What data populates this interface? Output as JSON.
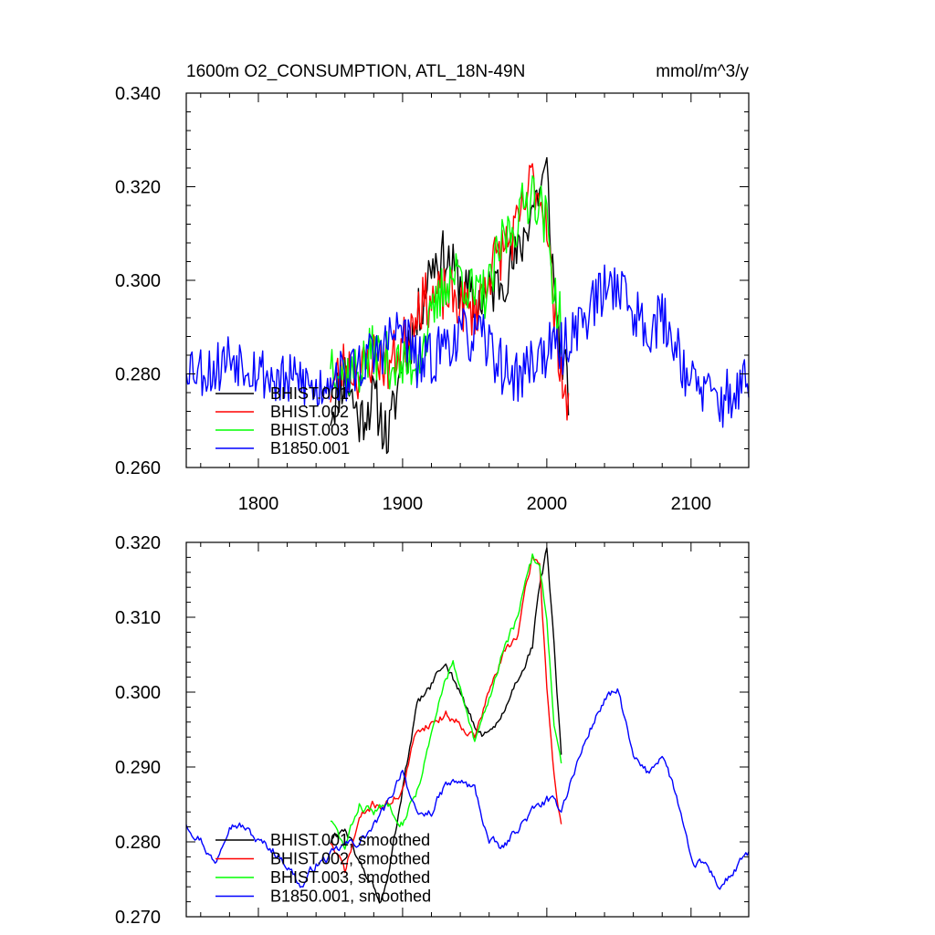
{
  "chart_data": [
    {
      "type": "line",
      "title": "1600m O2_CONSUMPTION, ATL_18N-49N",
      "units": "mmol/m^3/y",
      "xlim": [
        1750,
        2140
      ],
      "ylim": [
        0.26,
        0.34
      ],
      "xticks": [
        1800,
        1900,
        2000,
        2100
      ],
      "yticks": [
        0.26,
        0.28,
        0.3,
        0.32,
        0.34
      ],
      "ytick_labels": [
        "0.260",
        "0.280",
        "0.300",
        "0.320",
        "0.340"
      ],
      "legend_position": "bottom-left",
      "series": [
        {
          "name": "BHIST.001",
          "color": "#000000",
          "x": [
            1850,
            1860,
            1870,
            1880,
            1890,
            1900,
            1910,
            1920,
            1930,
            1940,
            1950,
            1960,
            1970,
            1980,
            1990,
            2000,
            2005,
            2010,
            2015
          ],
          "values": [
            0.272,
            0.28,
            0.27,
            0.275,
            0.266,
            0.283,
            0.291,
            0.304,
            0.305,
            0.299,
            0.295,
            0.297,
            0.301,
            0.305,
            0.316,
            0.323,
            0.298,
            0.285,
            0.276
          ],
          "noise": 0.006,
          "seed": 11
        },
        {
          "name": "BHIST.002",
          "color": "#ff0000",
          "x": [
            1850,
            1860,
            1870,
            1880,
            1890,
            1900,
            1910,
            1920,
            1930,
            1940,
            1950,
            1960,
            1970,
            1980,
            1990,
            2000,
            2005,
            2010,
            2015
          ],
          "values": [
            0.277,
            0.282,
            0.28,
            0.284,
            0.282,
            0.286,
            0.295,
            0.296,
            0.297,
            0.295,
            0.293,
            0.302,
            0.307,
            0.311,
            0.322,
            0.314,
            0.292,
            0.282,
            0.27
          ],
          "noise": 0.006,
          "seed": 23
        },
        {
          "name": "BHIST.003",
          "color": "#00ff00",
          "x": [
            1850,
            1860,
            1870,
            1880,
            1890,
            1900,
            1910,
            1920,
            1930,
            1940,
            1950,
            1960,
            1970,
            1980,
            1990,
            2000,
            2005,
            2010
          ],
          "values": [
            0.284,
            0.28,
            0.281,
            0.285,
            0.283,
            0.281,
            0.283,
            0.291,
            0.3,
            0.302,
            0.296,
            0.298,
            0.309,
            0.313,
            0.32,
            0.312,
            0.298,
            0.29
          ],
          "noise": 0.006,
          "seed": 37
        },
        {
          "name": "B1850.001",
          "color": "#0000ff",
          "x": [
            1750,
            1760,
            1770,
            1780,
            1790,
            1800,
            1810,
            1820,
            1830,
            1840,
            1850,
            1860,
            1870,
            1880,
            1890,
            1900,
            1910,
            1920,
            1930,
            1940,
            1950,
            1960,
            1970,
            1980,
            1990,
            2000,
            2010,
            2020,
            2030,
            2040,
            2050,
            2060,
            2070,
            2080,
            2090,
            2100,
            2110,
            2120,
            2130,
            2140
          ],
          "values": [
            0.283,
            0.281,
            0.281,
            0.284,
            0.283,
            0.281,
            0.279,
            0.278,
            0.279,
            0.276,
            0.28,
            0.279,
            0.282,
            0.284,
            0.287,
            0.29,
            0.282,
            0.283,
            0.287,
            0.288,
            0.288,
            0.286,
            0.281,
            0.279,
            0.283,
            0.285,
            0.285,
            0.29,
            0.294,
            0.298,
            0.3,
            0.293,
            0.29,
            0.292,
            0.286,
            0.278,
            0.276,
            0.274,
            0.276,
            0.278
          ],
          "noise": 0.006,
          "seed": 53
        }
      ]
    },
    {
      "type": "line",
      "title": "",
      "xlim": [
        1750,
        2140
      ],
      "ylim": [
        0.27,
        0.32
      ],
      "xticks": [
        1800,
        1900,
        2000,
        2100
      ],
      "yticks": [
        0.27,
        0.28,
        0.29,
        0.3,
        0.31,
        0.32
      ],
      "ytick_labels": [
        "0.270",
        "0.280",
        "0.290",
        "0.300",
        "0.310",
        "0.320"
      ],
      "legend_position": "bottom-left",
      "series": [
        {
          "name": "BHIST.001, smoothed",
          "color": "#000000",
          "x": [
            1850,
            1860,
            1870,
            1880,
            1885,
            1890,
            1900,
            1910,
            1920,
            1930,
            1940,
            1950,
            1960,
            1970,
            1980,
            1990,
            1995,
            2000,
            2005,
            2010
          ],
          "values": [
            0.28,
            0.282,
            0.277,
            0.274,
            0.272,
            0.275,
            0.287,
            0.298,
            0.301,
            0.304,
            0.3,
            0.295,
            0.294,
            0.297,
            0.302,
            0.306,
            0.314,
            0.319,
            0.306,
            0.291
          ],
          "noise": 0.0005,
          "seed": 61
        },
        {
          "name": "BHIST.002, smoothed",
          "color": "#ff0000",
          "x": [
            1850,
            1860,
            1870,
            1880,
            1890,
            1900,
            1910,
            1920,
            1930,
            1940,
            1950,
            1960,
            1970,
            1980,
            1990,
            1995,
            2000,
            2005,
            2010
          ],
          "values": [
            0.28,
            0.276,
            0.283,
            0.285,
            0.285,
            0.287,
            0.295,
            0.296,
            0.297,
            0.296,
            0.294,
            0.3,
            0.305,
            0.308,
            0.318,
            0.317,
            0.301,
            0.289,
            0.282
          ],
          "noise": 0.0005,
          "seed": 71
        },
        {
          "name": "BHIST.003, smoothed",
          "color": "#00ff00",
          "x": [
            1850,
            1860,
            1870,
            1880,
            1890,
            1900,
            1910,
            1920,
            1930,
            1935,
            1940,
            1950,
            1960,
            1970,
            1980,
            1990,
            1995,
            2000,
            2005,
            2010
          ],
          "values": [
            0.283,
            0.279,
            0.285,
            0.284,
            0.285,
            0.283,
            0.287,
            0.294,
            0.302,
            0.304,
            0.3,
            0.293,
            0.299,
            0.306,
            0.31,
            0.318,
            0.317,
            0.31,
            0.296,
            0.29
          ],
          "noise": 0.0005,
          "seed": 83
        },
        {
          "name": "B1850.001, smoothed",
          "color": "#0000ff",
          "x": [
            1750,
            1760,
            1770,
            1780,
            1790,
            1800,
            1810,
            1820,
            1830,
            1840,
            1850,
            1860,
            1870,
            1880,
            1890,
            1900,
            1910,
            1920,
            1930,
            1940,
            1950,
            1960,
            1970,
            1980,
            1990,
            2000,
            2010,
            2020,
            2030,
            2040,
            2050,
            2060,
            2070,
            2080,
            2090,
            2100,
            2110,
            2120,
            2130,
            2140
          ],
          "values": [
            0.2825,
            0.2805,
            0.277,
            0.283,
            0.282,
            0.28,
            0.279,
            0.277,
            0.274,
            0.277,
            0.278,
            0.2795,
            0.28,
            0.282,
            0.285,
            0.29,
            0.283,
            0.284,
            0.2875,
            0.288,
            0.287,
            0.28,
            0.279,
            0.282,
            0.284,
            0.2855,
            0.2845,
            0.29,
            0.295,
            0.299,
            0.3,
            0.291,
            0.289,
            0.292,
            0.286,
            0.277,
            0.277,
            0.274,
            0.276,
            0.2785
          ],
          "noise": 0.0005,
          "seed": 97
        }
      ]
    }
  ]
}
